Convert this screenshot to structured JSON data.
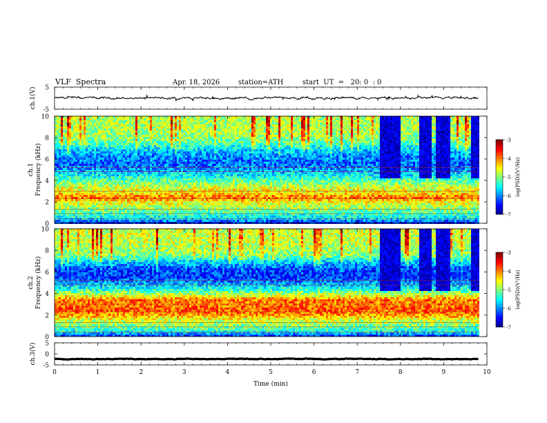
{
  "header": {
    "title": "VLF  Spectra",
    "date": "Apr. 18, 2026",
    "station": "station=ATH",
    "start": "start  UT  =   20: 0  : 0"
  },
  "chart_data": {
    "type": "heatmap",
    "title": "VLF  Spectra",
    "xlabel": "Time  (min)",
    "xlim": [
      0,
      10
    ],
    "x_ticks": [
      "0",
      "1",
      "2",
      "3",
      "4",
      "5",
      "6",
      "7",
      "8",
      "9",
      "10"
    ],
    "data_end_min": 9.8,
    "panels": [
      {
        "id": "ch1-waveform",
        "type": "line",
        "ylabel": "ch.1(V)",
        "ylim": [
          -5,
          5
        ],
        "y_ticks": [
          "5",
          "-5"
        ],
        "baseline": 0,
        "noise_amplitude": 0.5,
        "color": "#000000"
      },
      {
        "id": "ch1-spectrogram",
        "type": "heatmap",
        "ylabel_lines": [
          "ch.1",
          "Frequency  (kHz)"
        ],
        "ylim": [
          0,
          10
        ],
        "y_ticks": [
          "0",
          "2",
          "4",
          "6",
          "8",
          "10"
        ],
        "colorbar": {
          "label": "log(PSD)(V²/Hz)",
          "range": [
            -7,
            -3
          ],
          "ticks": [
            "-3",
            "-4",
            "-5",
            "-6",
            "-7"
          ]
        },
        "profile": [
          {
            "f": 0.0,
            "v": -6.5
          },
          {
            "f": 0.4,
            "v": -5.6
          },
          {
            "f": 1.0,
            "v": -5.2
          },
          {
            "f": 1.5,
            "v": -4.8
          },
          {
            "f": 2.0,
            "v": -4.5
          },
          {
            "f": 2.4,
            "v": -3.9
          },
          {
            "f": 2.8,
            "v": -4.4
          },
          {
            "f": 3.3,
            "v": -4.6
          },
          {
            "f": 3.8,
            "v": -5.0
          },
          {
            "f": 4.3,
            "v": -5.4
          },
          {
            "f": 5.0,
            "v": -5.9
          },
          {
            "f": 5.5,
            "v": -6.1
          },
          {
            "f": 6.2,
            "v": -6.0
          },
          {
            "f": 6.8,
            "v": -5.7
          },
          {
            "f": 7.4,
            "v": -5.2
          },
          {
            "f": 8.0,
            "v": -4.9
          },
          {
            "f": 9.0,
            "v": -4.8
          },
          {
            "f": 10.0,
            "v": -4.8
          }
        ],
        "dropouts": [
          [
            7.5,
            8.0
          ],
          [
            8.4,
            8.7
          ],
          [
            8.8,
            9.15
          ],
          [
            9.6,
            9.8
          ]
        ],
        "dropout_floor_khz": 4.2
      },
      {
        "id": "ch2-spectrogram",
        "type": "heatmap",
        "ylabel_lines": [
          "ch.2",
          "Frequency  (kHz)"
        ],
        "ylim": [
          0,
          10
        ],
        "y_ticks": [
          "0",
          "2",
          "4",
          "6",
          "8",
          "10"
        ],
        "colorbar": {
          "label": "log(PSD)(V²/Hz)",
          "range": [
            -7,
            -3
          ],
          "ticks": [
            "-3",
            "-4",
            "-5",
            "-6",
            "-7"
          ]
        },
        "profile": [
          {
            "f": 0.0,
            "v": -6.4
          },
          {
            "f": 0.5,
            "v": -5.4
          },
          {
            "f": 1.0,
            "v": -5.0
          },
          {
            "f": 1.6,
            "v": -4.6
          },
          {
            "f": 2.0,
            "v": -4.1
          },
          {
            "f": 2.5,
            "v": -3.8
          },
          {
            "f": 3.0,
            "v": -4.0
          },
          {
            "f": 3.4,
            "v": -3.9
          },
          {
            "f": 3.8,
            "v": -4.6
          },
          {
            "f": 4.3,
            "v": -5.3
          },
          {
            "f": 5.0,
            "v": -5.9
          },
          {
            "f": 5.5,
            "v": -6.3
          },
          {
            "f": 6.3,
            "v": -6.2
          },
          {
            "f": 7.0,
            "v": -5.6
          },
          {
            "f": 7.5,
            "v": -5.0
          },
          {
            "f": 8.2,
            "v": -4.8
          },
          {
            "f": 9.0,
            "v": -4.7
          },
          {
            "f": 10.0,
            "v": -4.7
          }
        ],
        "dropouts": [
          [
            7.5,
            8.0
          ],
          [
            8.4,
            8.7
          ],
          [
            8.8,
            9.15
          ],
          [
            9.6,
            9.8
          ]
        ],
        "dropout_floor_khz": 4.2
      },
      {
        "id": "ch3-waveform",
        "type": "line",
        "ylabel": "ch.3(V)",
        "ylim": [
          -5,
          5
        ],
        "y_ticks": [
          "5",
          "0",
          "-5"
        ],
        "baseline": -2.3,
        "noise_amplitude": 0.15,
        "color": "#000000"
      }
    ]
  }
}
